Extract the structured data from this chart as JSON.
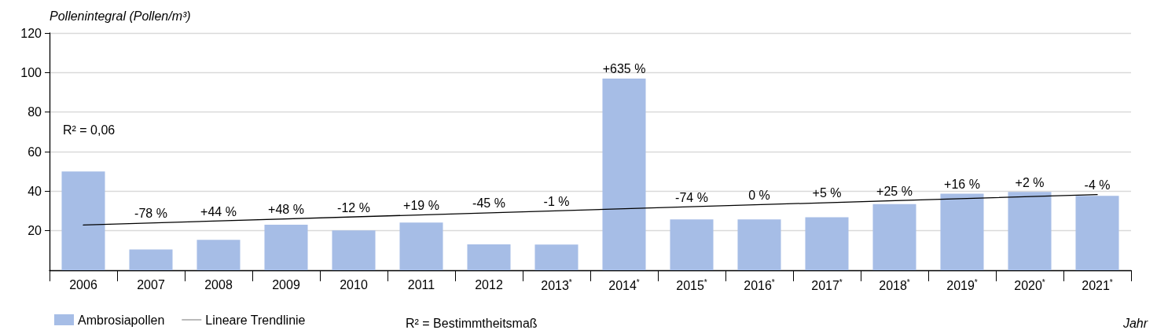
{
  "chart_data": {
    "type": "bar",
    "ylabel": "Pollenintegral (Pollen/m³)",
    "xlabel": "Jahr",
    "categories": [
      "2006",
      "2007",
      "2008",
      "2009",
      "2010",
      "2011",
      "2012",
      "2013$^{*}$",
      "2014$^{*}$",
      "2015$^{*}$",
      "2016$^{*}$",
      "2017$^{*}$",
      "2018$^{*}$",
      "2019$^{*}$",
      "2020$^{*}$",
      "2021$^{*}$"
    ],
    "series": [
      {
        "name": "Ambrosiapollen",
        "color": "#a6bde6",
        "values": [
          50,
          10.5,
          15.4,
          23,
          20.2,
          24.1,
          13.1,
          13,
          97,
          25.7,
          25.7,
          26.8,
          33.5,
          38.7,
          39.6,
          37.6
        ]
      },
      {
        "name": "Lineare Trendlinie",
        "type": "line",
        "color": "#000000",
        "values": [
          22.9,
          null,
          null,
          null,
          null,
          null,
          null,
          null,
          null,
          null,
          null,
          null,
          null,
          null,
          null,
          38.3
        ]
      }
    ],
    "ylim": [
      0,
      120
    ],
    "yticks": [
      20,
      40,
      60,
      80,
      100,
      120
    ],
    "grid": "y",
    "legend": "bottom left",
    "marker": "none",
    "annotations": [
      "R² = 0,06",
      "R² = Bestimmtheitsmaß",
      {
        "text": "-78 %",
        "x": "2007",
        "y": 10.5
      },
      {
        "text": "+44 %",
        "x": "2008",
        "y": 15.4
      },
      {
        "text": "+48 %",
        "x": "2009",
        "y": 23
      },
      {
        "text": "-12 %",
        "x": "2010",
        "y": 20.2
      },
      {
        "text": "+19 %",
        "x": "2011",
        "y": 24.1
      },
      {
        "text": "-45 %",
        "x": "2012",
        "y": 13.1
      },
      {
        "text": "-1 %",
        "x": "2013$^{*}$",
        "y": 13
      },
      {
        "text": "+635 %",
        "x": "2014$^{*}$",
        "y": 97
      },
      {
        "text": "-74 %",
        "x": "2015$^{*}$",
        "y": 25.7
      },
      {
        "text": "0 %",
        "x": "2016$^{*}$",
        "y": 25.7
      },
      {
        "text": "+5 %",
        "x": "2017$^{*}$",
        "y": 26.8
      },
      {
        "text": "+25 %",
        "x": "2018$^{*}$",
        "y": 33.5
      },
      {
        "text": "+16 %",
        "x": "2019$^{*}$",
        "y": 38.7
      },
      {
        "text": "+2 %",
        "x": "2020$^{*}$",
        "y": 39.6
      },
      {
        "text": "-4 %",
        "x": "2021$^{*}$",
        "y": 37.6
      }
    ]
  }
}
